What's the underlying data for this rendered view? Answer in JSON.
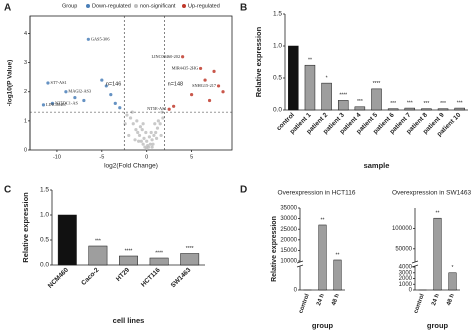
{
  "chart_data": [
    {
      "type": "scatter",
      "panel": "A",
      "xlabel": "log2(Fold Change)",
      "ylabel": "-log10(P Value)",
      "legend_title": "Group",
      "xlim": [
        -13,
        9.5
      ],
      "xticks": [
        -10,
        -5,
        0,
        5
      ],
      "ylim": [
        0,
        4.6
      ],
      "yticks": [
        0,
        1,
        2,
        3,
        4
      ],
      "vlines": [
        -2.5,
        2
      ],
      "hline": 1.3,
      "count_labels": [
        "n=146",
        "n=148"
      ],
      "series": [
        {
          "name": "Down-regulated",
          "color": "#4a7fb8",
          "x": [
            -6.5,
            -11,
            -9,
            -8,
            -7,
            -10.5,
            -11.5,
            -4,
            -3.5,
            -5,
            -3,
            -4.5
          ],
          "values": [
            3.8,
            2.3,
            2.0,
            1.8,
            1.7,
            1.6,
            1.55,
            1.9,
            1.6,
            2.4,
            1.45,
            2.2
          ],
          "point_labels": [
            "GAS5-306",
            "ST7-AS1",
            "MAGI2-AS3",
            null,
            null,
            "NT5DC1-AS",
            "LINC00467",
            null,
            null,
            null,
            null,
            null
          ]
        },
        {
          "name": "non-significant",
          "color": "#bfbfbf",
          "x": [
            -2.2,
            -1.8,
            -1.5,
            -1.2,
            -1,
            -0.8,
            -0.6,
            -0.4,
            -0.2,
            0,
            0.2,
            0.4,
            0.6,
            0.8,
            1,
            1.2,
            1.5,
            1.8,
            -1.6,
            -1.1,
            -0.7,
            -0.3,
            0.1,
            0.5,
            0.9,
            1.3,
            1.7,
            -2,
            -0.9,
            0.3,
            0.7,
            1.1,
            -1.3,
            -0.5,
            1.6,
            -2.4,
            0,
            0.6,
            -0.1,
            -0.4
          ],
          "values": [
            1.2,
            1.1,
            0.9,
            0.7,
            0.6,
            0.5,
            0.3,
            0.2,
            0.1,
            0.05,
            0.1,
            0.2,
            0.35,
            0.5,
            0.6,
            0.75,
            0.9,
            1.1,
            1.3,
            1.0,
            0.8,
            0.4,
            0.15,
            0.6,
            0.9,
            1.0,
            1.3,
            0.5,
            0.3,
            0.45,
            0.2,
            0.4,
            0.35,
            0.7,
            0.5,
            0.9,
            0.3,
            0.1,
            0.6,
            0.9
          ]
        },
        {
          "name": "Up-regulated",
          "color": "#c0392b",
          "x": [
            4,
            6,
            7.5,
            8,
            8.5,
            3,
            5,
            2.5,
            6.5,
            7
          ],
          "values": [
            3.2,
            2.8,
            2.7,
            2.2,
            2.0,
            1.5,
            1.9,
            1.4,
            2.4,
            1.7
          ],
          "point_labels": [
            "LINC00460-202",
            "MIR4435-2HG",
            null,
            "SNHG15-217",
            null,
            null,
            null,
            "NT5E-AS1",
            null,
            null
          ]
        }
      ]
    },
    {
      "type": "bar",
      "panel": "B",
      "xlabel": "sample",
      "ylabel": "Relative expression",
      "categories": [
        "control",
        "patient 1",
        "patient 2",
        "patient 3",
        "patient 4",
        "patient 5",
        "patient 6",
        "patient 7",
        "patient 8",
        "patient 9",
        "patient 10"
      ],
      "values": [
        1.0,
        0.7,
        0.42,
        0.15,
        0.05,
        0.33,
        0.02,
        0.03,
        0.02,
        0.02,
        0.03
      ],
      "annotations": [
        null,
        "**",
        "*",
        "****",
        "***",
        "****",
        "***",
        "***",
        "***",
        "***",
        "***"
      ],
      "colors": [
        "#111111",
        "#9e9e9e",
        "#9e9e9e",
        "#9e9e9e",
        "#9e9e9e",
        "#9e9e9e",
        "#9e9e9e",
        "#9e9e9e",
        "#9e9e9e",
        "#9e9e9e",
        "#9e9e9e"
      ],
      "ylim": [
        0,
        1.5
      ],
      "yticks": [
        {
          "value": 0,
          "label": "0.0"
        },
        0.5,
        {
          "value": 1,
          "label": "1.0"
        },
        1.5
      ]
    },
    {
      "type": "bar",
      "panel": "C",
      "xlabel": "cell lines",
      "ylabel": "Relative expression",
      "categories": [
        "NCM460",
        "Caco-2",
        "HT29",
        "HCT116",
        "SW1463"
      ],
      "values": [
        1.0,
        0.38,
        0.18,
        0.14,
        0.23
      ],
      "annotations": [
        null,
        "***",
        "****",
        "****",
        "****"
      ],
      "colors": [
        "#111111",
        "#9e9e9e",
        "#9e9e9e",
        "#9e9e9e",
        "#9e9e9e"
      ],
      "ylim": [
        0,
        1.5
      ],
      "yticks": [
        {
          "value": 0,
          "label": "0.0"
        },
        0.5,
        {
          "value": 1,
          "label": "1.0"
        },
        1.5
      ]
    },
    {
      "type": "bar",
      "panel": "D",
      "title": "Overexpression in HCT116",
      "xlabel": "group",
      "ylabel": "Relative expression",
      "categories": [
        "control",
        "24 h",
        "48 h"
      ],
      "values": [
        1,
        27000,
        10500
      ],
      "annotations": [
        null,
        "**",
        "**"
      ],
      "colors": [
        "#9e9e9e",
        "#9e9e9e",
        "#9e9e9e"
      ],
      "y_segments": [
        [
          0,
          5000
        ],
        [
          10000,
          35000
        ]
      ],
      "yticks": [
        0,
        10000,
        15000,
        20000,
        25000,
        30000,
        35000
      ]
    },
    {
      "type": "bar",
      "title": "Overexpression in SW1463",
      "xlabel": "group",
      "categories": [
        "control",
        "24 h",
        "48 h"
      ],
      "values": [
        1,
        125000,
        3000
      ],
      "annotations": [
        null,
        "**",
        "*"
      ],
      "colors": [
        "#9e9e9e",
        "#9e9e9e",
        "#9e9e9e"
      ],
      "y_segments": [
        [
          0,
          4000
        ],
        [
          20000,
          150000
        ]
      ],
      "yticks": [
        0,
        1000,
        2000,
        3000,
        4000,
        50000,
        100000
      ]
    }
  ]
}
